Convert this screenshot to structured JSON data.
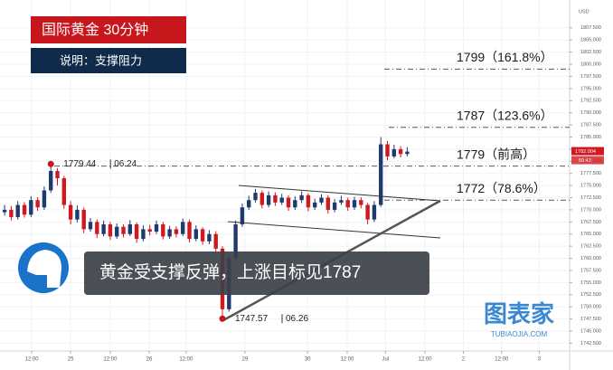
{
  "chart_data": {
    "type": "candlestick",
    "title": "国际黄金  30分钟",
    "subtitle": "说明：支撑阻力",
    "banner": "黄金受支撑反弹，上涨目标见1787",
    "currency": "USD",
    "watermark": {
      "name": "图表家",
      "site": "TUBIAOJIA.COM"
    },
    "up_color": "#1f3a6e",
    "down_color": "#d0191f",
    "grid": true,
    "xlim": [
      -0.7,
      85.6
    ],
    "xticks": [
      {
        "value": 4.1,
        "label": "12:00"
      },
      {
        "value": 10,
        "label": "25"
      },
      {
        "value": 16,
        "label": "12:00"
      },
      {
        "value": 21.9,
        "label": "26"
      },
      {
        "value": 27.5,
        "label": "12:00"
      },
      {
        "value": 36.4,
        "label": "29"
      },
      {
        "value": 45.9,
        "label": "30"
      },
      {
        "value": 51.9,
        "label": "12:00"
      },
      {
        "value": 57.7,
        "label": "Jul"
      },
      {
        "value": 63.7,
        "label": "12:00"
      },
      {
        "value": 69.5,
        "label": "2"
      },
      {
        "value": 75.3,
        "label": "12:00"
      },
      {
        "value": 81,
        "label": "3"
      }
    ],
    "ylim": [
      1740.9,
      1811.75
    ],
    "yticks": [
      {
        "value": 1742.5,
        "label": "1742.500"
      },
      {
        "value": 1745,
        "label": "1745.000"
      },
      {
        "value": 1747.5,
        "label": "1747.500"
      },
      {
        "value": 1750,
        "label": "1750.000"
      },
      {
        "value": 1752.5,
        "label": "1752.500"
      },
      {
        "value": 1755,
        "label": "1755.000"
      },
      {
        "value": 1757.5,
        "label": "1757.500"
      },
      {
        "value": 1760,
        "label": "1760.000"
      },
      {
        "value": 1762.5,
        "label": "1762.500"
      },
      {
        "value": 1765,
        "label": "1765.000"
      },
      {
        "value": 1767.5,
        "label": "1767.500"
      },
      {
        "value": 1770,
        "label": "1770.000"
      },
      {
        "value": 1772.5,
        "label": "1772.500"
      },
      {
        "value": 1775,
        "label": "1775.000"
      },
      {
        "value": 1777.5,
        "label": "1777.500"
      },
      {
        "value": 1780,
        "label": "1780.000"
      },
      {
        "value": 1782.5,
        "label": "1782.500"
      },
      {
        "value": 1785,
        "label": "1785.000"
      },
      {
        "value": 1787.5,
        "label": "1787.500"
      },
      {
        "value": 1790,
        "label": "1790.000"
      },
      {
        "value": 1792.5,
        "label": "1792.500"
      },
      {
        "value": 1795,
        "label": "1795.000"
      },
      {
        "value": 1797.5,
        "label": "1797.500"
      },
      {
        "value": 1800,
        "label": "1800.000"
      },
      {
        "value": 1802.5,
        "label": "1802.500"
      },
      {
        "value": 1805,
        "label": "1805.000"
      },
      {
        "value": 1807.5,
        "label": "1807.500"
      }
    ],
    "open": [
      1769.5,
      1770,
      1768.5,
      1771,
      1769,
      1772,
      1770.5,
      1774,
      1778,
      1776.5,
      1771,
      1768,
      1770,
      1766,
      1767.5,
      1765,
      1767,
      1764.5,
      1766.5,
      1765,
      1767,
      1764,
      1766,
      1765.5,
      1767,
      1764.5,
      1766,
      1765,
      1767.5,
      1764,
      1766,
      1763.5,
      1765,
      1762,
      1749.5,
      1760,
      1767,
      1770.5,
      1772,
      1773.5,
      1771,
      1773,
      1771.5,
      1772.5,
      1770.5,
      1772,
      1773,
      1770.5,
      1771.5,
      1772.5,
      1770,
      1771.5,
      1772,
      1770.5,
      1772,
      1771,
      1768,
      1771,
      1783.5,
      1781,
      1782.5,
      1781.5
    ],
    "high": [
      1771,
      1770.8,
      1771.8,
      1771.6,
      1772.8,
      1772.6,
      1774.8,
      1779.44,
      1778.6,
      1777,
      1771.8,
      1770.9,
      1770.5,
      1768.3,
      1768,
      1767.8,
      1767.5,
      1767.2,
      1767,
      1767.9,
      1767.4,
      1766.8,
      1766.9,
      1767.8,
      1767.5,
      1766.7,
      1766.6,
      1768.2,
      1768,
      1766.8,
      1766.4,
      1765.8,
      1765.6,
      1762.5,
      1760.8,
      1767.8,
      1771.3,
      1772.9,
      1774.3,
      1774,
      1773.8,
      1773.6,
      1773.3,
      1773,
      1772.8,
      1773.8,
      1773.4,
      1772.3,
      1773.2,
      1773,
      1772.2,
      1772.9,
      1772.5,
      1772.7,
      1772.6,
      1771.4,
      1771.8,
      1785,
      1784.2,
      1783.4,
      1783.1,
      1782.9
    ],
    "low": [
      1768.8,
      1767.8,
      1768,
      1768.4,
      1768.5,
      1769.8,
      1770,
      1773.5,
      1775,
      1770.2,
      1767,
      1767.4,
      1765.2,
      1765.5,
      1764.2,
      1764.5,
      1763.8,
      1764,
      1764.3,
      1764.6,
      1763.2,
      1763.5,
      1764.7,
      1765,
      1763.9,
      1764,
      1764.3,
      1764.6,
      1763.3,
      1763.5,
      1762.8,
      1762.9,
      1761.2,
      1747.57,
      1749,
      1759.4,
      1766.5,
      1770,
      1771.5,
      1770.3,
      1770.5,
      1770.8,
      1771,
      1769.8,
      1770,
      1771.4,
      1769.7,
      1770,
      1771,
      1769.2,
      1769.5,
      1771,
      1769.8,
      1770,
      1770.3,
      1767,
      1767.5,
      1770.6,
      1780.2,
      1780.6,
      1780.8,
      1781
    ],
    "close": [
      1770,
      1768.5,
      1771,
      1769,
      1772,
      1770.5,
      1774,
      1778,
      1776.5,
      1771,
      1768,
      1770,
      1766,
      1767.5,
      1765,
      1767,
      1764.5,
      1766.5,
      1765,
      1767,
      1764,
      1766,
      1765.5,
      1767,
      1764.5,
      1766,
      1765,
      1767.5,
      1764,
      1766,
      1763.5,
      1765,
      1762,
      1749.5,
      1760,
      1767,
      1770.5,
      1772,
      1773.5,
      1771,
      1773,
      1771.5,
      1772.5,
      1770.5,
      1772,
      1773,
      1770.5,
      1771.5,
      1772.5,
      1770,
      1771.5,
      1772,
      1770.5,
      1772,
      1771,
      1768,
      1771,
      1783.5,
      1781,
      1782.5,
      1781.5,
      1782
    ],
    "levels": [
      {
        "value": 1799,
        "label": "1799（161.8%）"
      },
      {
        "value": 1787,
        "label": "1787（123.6%）"
      },
      {
        "value": 1779,
        "label": "1779（前高）"
      },
      {
        "value": 1772,
        "label": "1772（78.6%）"
      }
    ],
    "points": [
      {
        "x": 7,
        "y": 1779.44,
        "date": "06.24"
      },
      {
        "x": 33,
        "y": 1747.57,
        "date": "06.26"
      }
    ],
    "last_price": {
      "value": 1782.004,
      "label": "1782.004"
    },
    "timer": "50:43"
  }
}
